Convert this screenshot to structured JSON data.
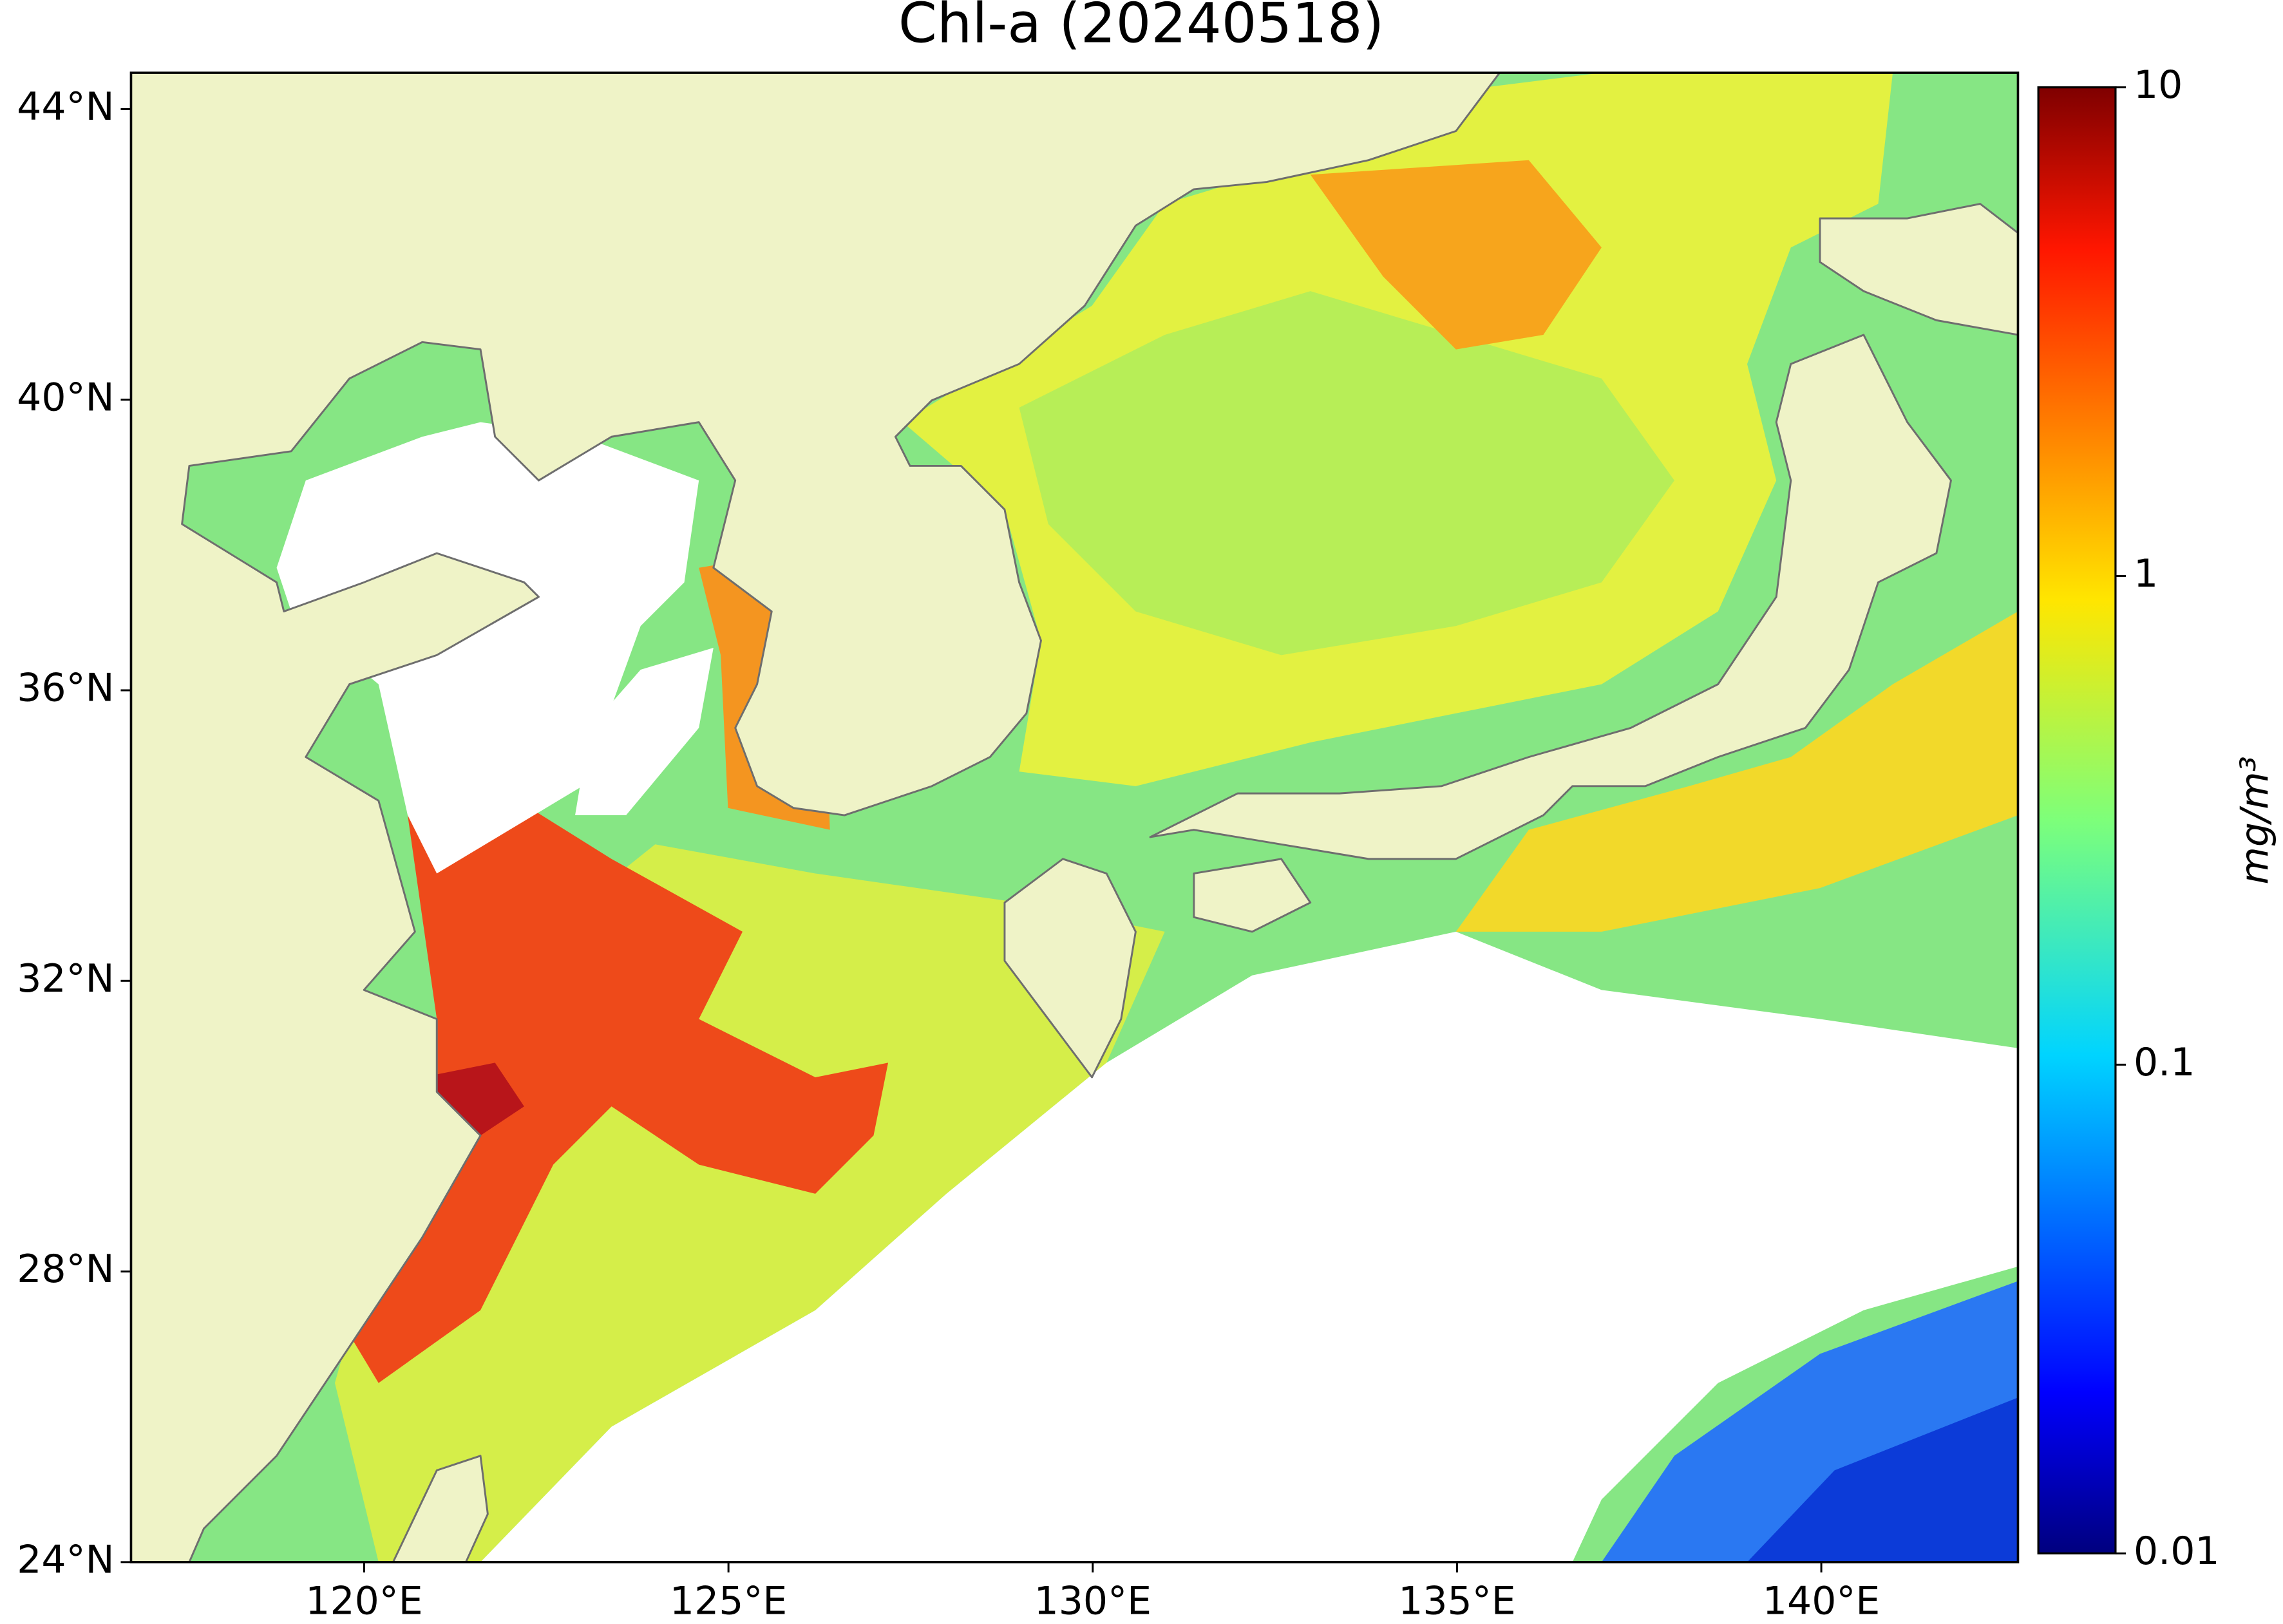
{
  "chart_data": {
    "type": "map",
    "title": "Chl-a (20240518)",
    "xlim": [
      116.8,
      142.7
    ],
    "ylim": [
      24,
      44.5
    ],
    "xticks": [
      {
        "value": 120,
        "label": "120°E"
      },
      {
        "value": 125,
        "label": "125°E"
      },
      {
        "value": 130,
        "label": "130°E"
      },
      {
        "value": 135,
        "label": "135°E"
      },
      {
        "value": 140,
        "label": "140°E"
      }
    ],
    "yticks": [
      {
        "value": 24,
        "label": "24°N"
      },
      {
        "value": 28,
        "label": "28°N"
      },
      {
        "value": 32,
        "label": "32°N"
      },
      {
        "value": 36,
        "label": "36°N"
      },
      {
        "value": 40,
        "label": "40°N"
      },
      {
        "value": 44,
        "label": "44°N"
      }
    ],
    "colorbar": {
      "label": "mg/m³",
      "colormap": "jet",
      "log_scale": true,
      "clim": [
        0.01,
        10
      ],
      "ticks": [
        0.01,
        0.1,
        1,
        10
      ]
    }
  }
}
